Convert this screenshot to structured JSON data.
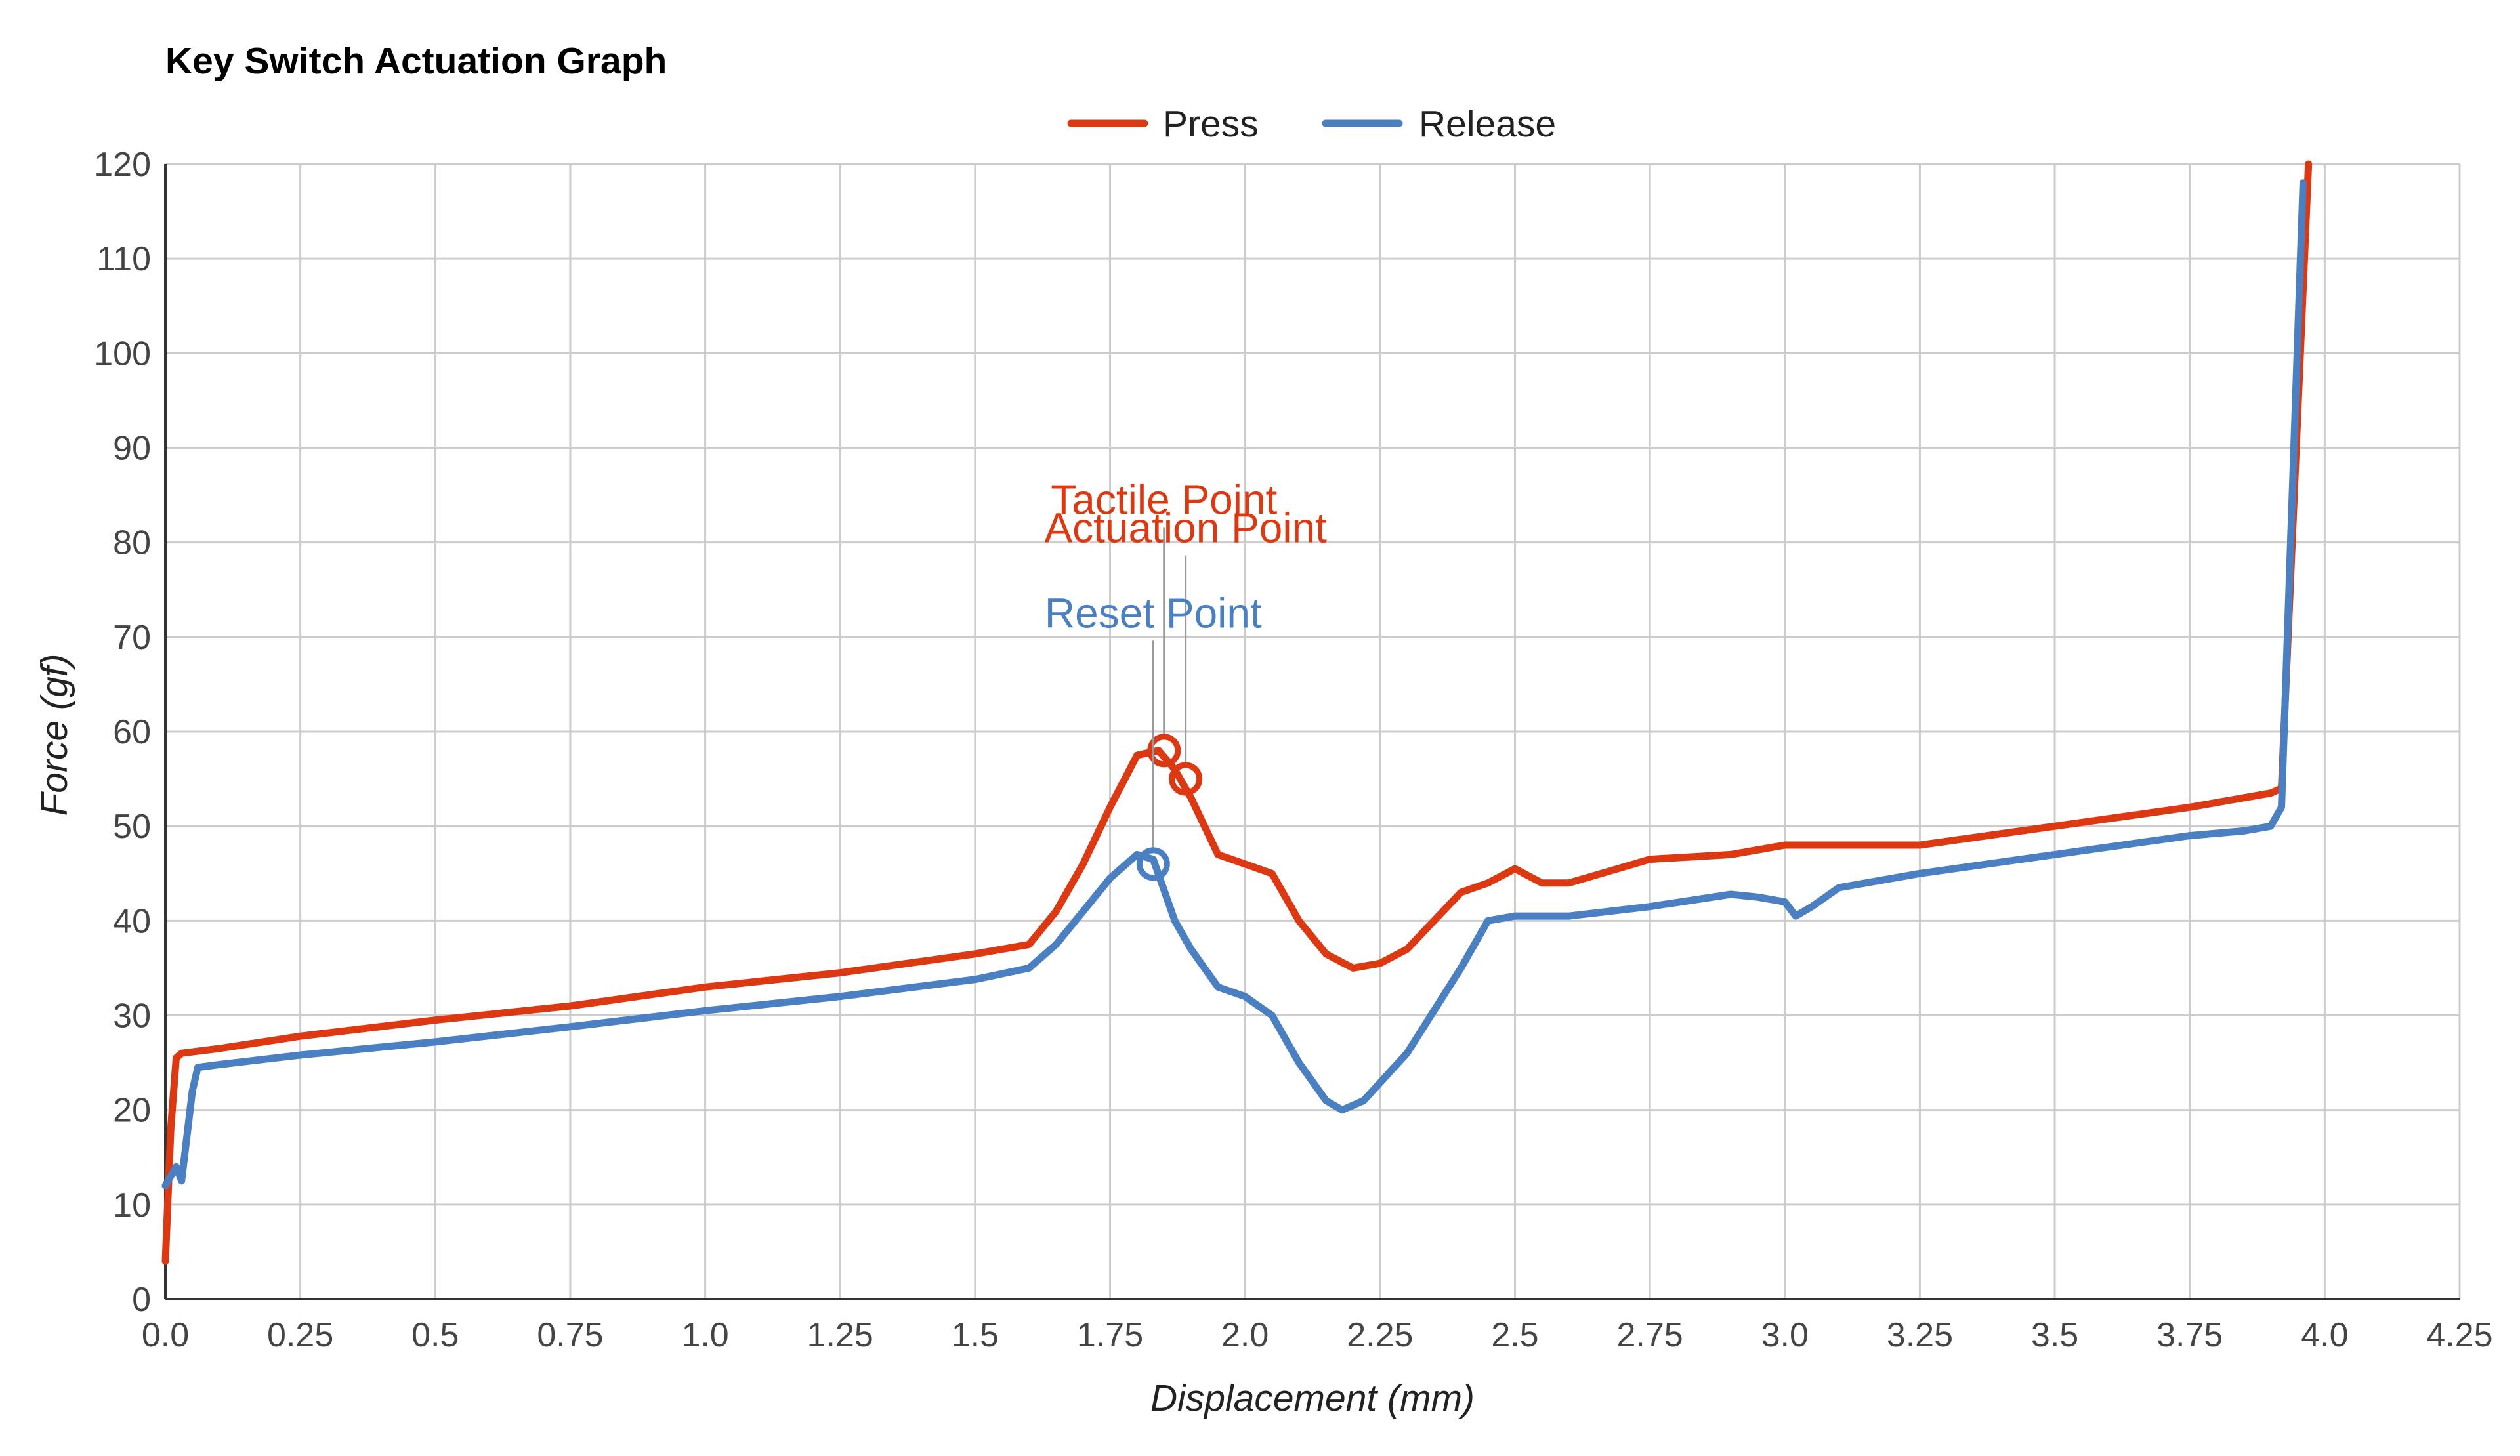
{
  "chart_data": {
    "type": "line",
    "title": "Key Switch Actuation Graph",
    "xlabel": "Displacement (mm)",
    "ylabel": "Force (gf)",
    "xlim": [
      0,
      4.25
    ],
    "ylim": [
      0,
      120
    ],
    "xticks": [
      "0.0",
      "0.25",
      "0.5",
      "0.75",
      "1.0",
      "1.25",
      "1.5",
      "1.75",
      "2.0",
      "2.25",
      "2.5",
      "2.75",
      "3.0",
      "3.25",
      "3.5",
      "3.75",
      "4.0",
      "4.25"
    ],
    "xtick_values": [
      0,
      0.25,
      0.5,
      0.75,
      1.0,
      1.25,
      1.5,
      1.75,
      2.0,
      2.25,
      2.5,
      2.75,
      3.0,
      3.25,
      3.5,
      3.75,
      4.0,
      4.25
    ],
    "yticks": [
      "0",
      "10",
      "20",
      "30",
      "40",
      "50",
      "60",
      "70",
      "80",
      "90",
      "100",
      "110",
      "120"
    ],
    "ytick_values": [
      0,
      10,
      20,
      30,
      40,
      50,
      60,
      70,
      80,
      90,
      100,
      110,
      120
    ],
    "grid": true,
    "legend_position": "top-center",
    "series": [
      {
        "name": "Press",
        "color": "#dc3912",
        "x": [
          0.0,
          0.01,
          0.02,
          0.03,
          0.1,
          0.25,
          0.5,
          0.75,
          1.0,
          1.25,
          1.5,
          1.6,
          1.65,
          1.7,
          1.75,
          1.8,
          1.84,
          1.87,
          1.9,
          1.95,
          2.0,
          2.05,
          2.1,
          2.15,
          2.2,
          2.25,
          2.3,
          2.35,
          2.4,
          2.45,
          2.5,
          2.55,
          2.6,
          2.75,
          2.9,
          3.0,
          3.1,
          3.25,
          3.5,
          3.75,
          3.9,
          3.92,
          3.97
        ],
        "y": [
          4,
          18,
          25.5,
          26,
          26.5,
          27.8,
          29.5,
          31,
          33,
          34.5,
          36.5,
          37.5,
          41,
          46,
          52,
          57.5,
          58,
          56,
          53,
          47,
          46,
          45,
          40,
          36.5,
          35,
          35.5,
          37,
          40,
          43,
          44,
          45.5,
          44,
          44,
          46.5,
          47,
          48,
          48,
          48,
          50,
          52,
          53.5,
          54,
          120
        ]
      },
      {
        "name": "Release",
        "color": "#4a7fc1",
        "x": [
          0.0,
          0.01,
          0.02,
          0.03,
          0.05,
          0.06,
          0.1,
          0.25,
          0.5,
          0.75,
          1.0,
          1.25,
          1.5,
          1.6,
          1.65,
          1.7,
          1.75,
          1.8,
          1.83,
          1.87,
          1.9,
          1.95,
          2.0,
          2.05,
          2.1,
          2.15,
          2.18,
          2.22,
          2.3,
          2.4,
          2.45,
          2.5,
          2.6,
          2.75,
          2.9,
          2.95,
          3.0,
          3.02,
          3.05,
          3.1,
          3.25,
          3.5,
          3.75,
          3.85,
          3.9,
          3.92,
          3.96
        ],
        "y": [
          12,
          13,
          14,
          12.5,
          22,
          24.5,
          24.8,
          25.8,
          27.2,
          28.8,
          30.5,
          32,
          33.8,
          35,
          37.5,
          41,
          44.5,
          47,
          46.5,
          40,
          37,
          33,
          32,
          30,
          25,
          21,
          20,
          21,
          26,
          35,
          40,
          40.5,
          40.5,
          41.5,
          42.8,
          42.5,
          42,
          40.5,
          41.5,
          43.5,
          45,
          47,
          49,
          49.5,
          50,
          52,
          118
        ]
      }
    ],
    "annotations": [
      {
        "label": "Tactile Point",
        "series": "Press",
        "color": "#dc3912",
        "x": 1.85,
        "y": 58,
        "text_y": 83
      },
      {
        "label": "Actuation Point",
        "series": "Press",
        "color": "#dc3912",
        "x": 1.89,
        "y": 55,
        "text_y": 80
      },
      {
        "label": "Reset Point",
        "series": "Release",
        "color": "#4a7fc1",
        "x": 1.83,
        "y": 46,
        "text_y": 71
      }
    ]
  }
}
